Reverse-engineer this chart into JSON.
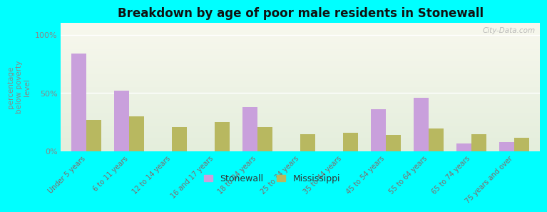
{
  "title": "Breakdown by age of poor male residents in Stonewall",
  "ylabel": "percentage\nbelow poverty\nlevel",
  "background_color": "#00FFFF",
  "plot_bg_top": "#f8f8ee",
  "plot_bg_bottom": "#e4eedc",
  "categories": [
    "Under 5 years",
    "6 to 11 years",
    "12 to 14 years",
    "16 and 17 years",
    "18 to 24 years",
    "25 to 34 years",
    "35 to 44 years",
    "45 to 54 years",
    "55 to 64 years",
    "65 to 74 years",
    "75 years and over"
  ],
  "stonewall_values": [
    84,
    52,
    0,
    0,
    38,
    0,
    0,
    36,
    46,
    7,
    8
  ],
  "mississippi_values": [
    27,
    30,
    21,
    25,
    21,
    15,
    16,
    14,
    20,
    15,
    12
  ],
  "stonewall_color": "#c9a0dc",
  "mississippi_color": "#b8b860",
  "yticks": [
    0,
    50,
    100
  ],
  "ytick_labels": [
    "0%",
    "50%",
    "100%"
  ],
  "ylim": [
    0,
    110
  ],
  "bar_width": 0.35,
  "watermark": "City-Data.com",
  "xtick_color": "#886666",
  "ytick_color": "#888888"
}
